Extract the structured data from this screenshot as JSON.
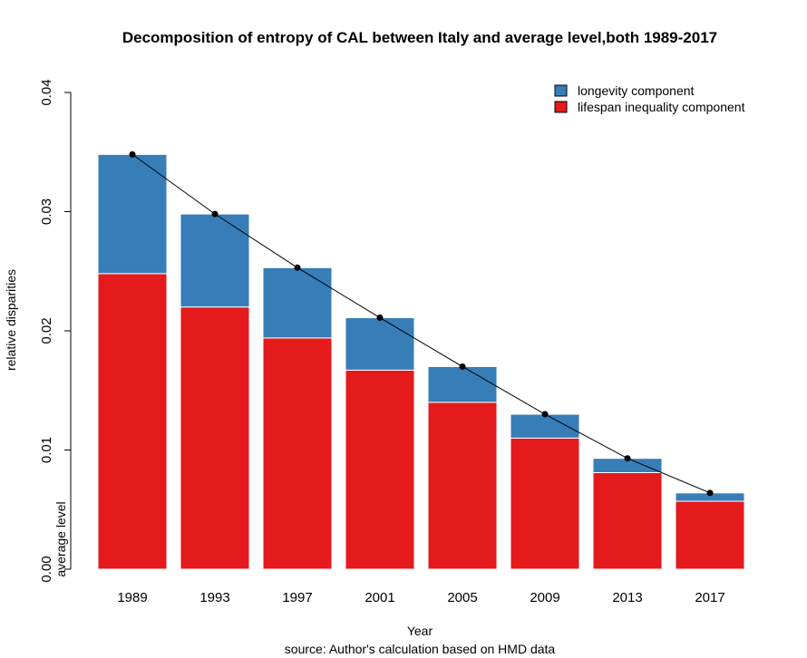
{
  "chart_data": {
    "type": "bar",
    "stacked": true,
    "title": "Decomposition of entropy of CAL between Italy and average level,both 1989-2017",
    "xlabel": "Year",
    "ylabel": "relative disparities",
    "source_note": "source: Author's calculation based on HMD data",
    "bottom_inner_label": "average level",
    "categories": [
      "1989",
      "1993",
      "1997",
      "2001",
      "2005",
      "2009",
      "2013",
      "2017"
    ],
    "series": [
      {
        "name": "lifespan inequality component",
        "color": "#E41A1C",
        "values": [
          0.0248,
          0.022,
          0.0194,
          0.0167,
          0.014,
          0.011,
          0.0081,
          0.0057
        ]
      },
      {
        "name": "longevity component",
        "color": "#377EB8",
        "values": [
          0.01,
          0.0078,
          0.0059,
          0.0044,
          0.003,
          0.002,
          0.0012,
          0.0007
        ]
      }
    ],
    "totals_line": {
      "values": [
        0.0348,
        0.0298,
        0.0253,
        0.0211,
        0.017,
        0.013,
        0.0093,
        0.0064
      ],
      "color": "#000000"
    },
    "ylim": [
      0,
      0.04
    ],
    "yticks": [
      "0.00",
      "0.01",
      "0.02",
      "0.03",
      "0.04"
    ],
    "legend_position": "top-right",
    "legend": [
      {
        "label": "longevity component",
        "color": "#377EB8"
      },
      {
        "label": "lifespan inequality component",
        "color": "#E41A1C"
      }
    ],
    "grid": false
  }
}
